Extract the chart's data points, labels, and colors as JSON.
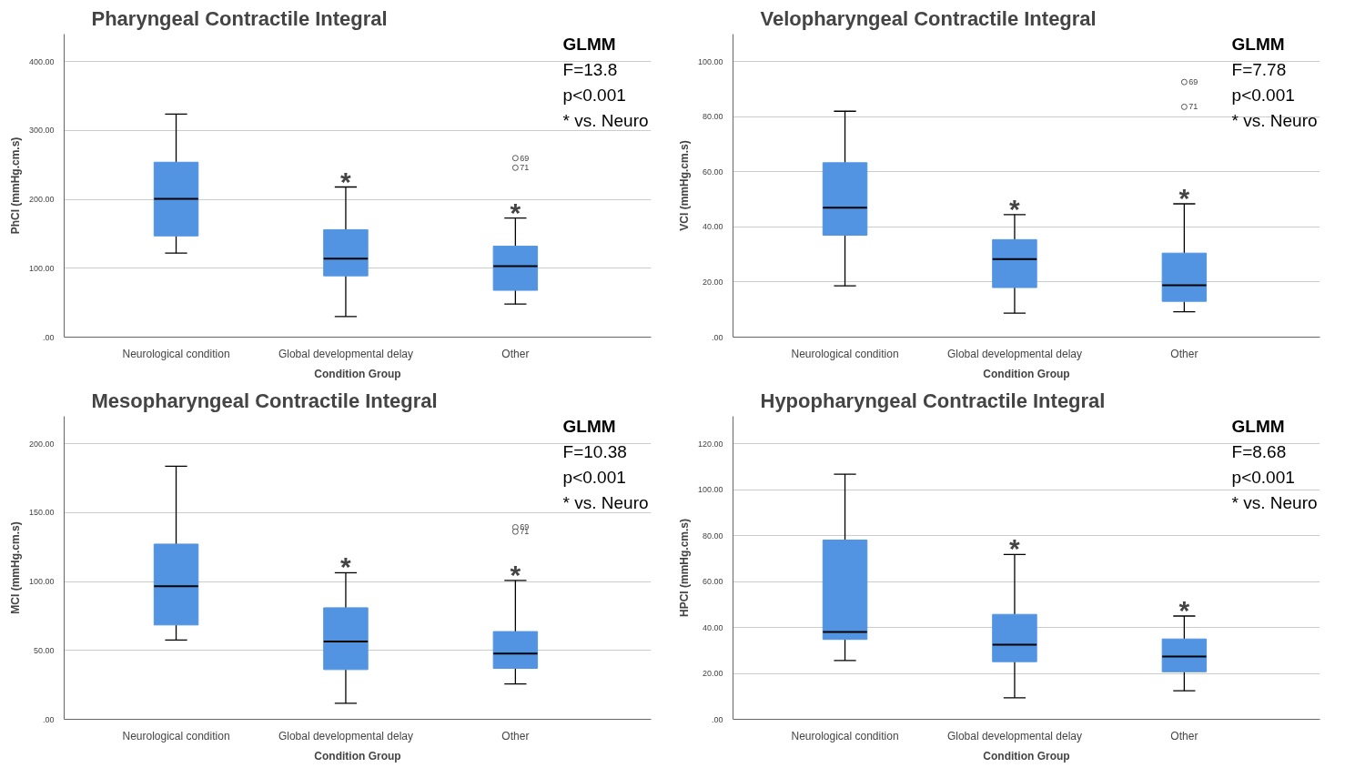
{
  "chart_data": [
    {
      "type": "box",
      "title": "Pharyngeal Contractile Integral",
      "xlabel": "Condition Group",
      "ylabel": "PhCI (mmHg.cm.s)",
      "categories": [
        "Neurological condition",
        "Global developmental delay",
        "Other"
      ],
      "ylim": [
        0,
        440
      ],
      "yticks": [
        {
          "value": 0,
          "label": ".00"
        },
        {
          "value": 100,
          "label": "100.00"
        },
        {
          "value": 200,
          "label": "200.00"
        },
        {
          "value": 300,
          "label": "300.00"
        },
        {
          "value": 400,
          "label": "400.00"
        }
      ],
      "grid": "y",
      "series": [
        {
          "color": "#5294e2",
          "boxes": [
            {
              "low": 122,
              "q1": 147,
              "median": 201,
              "q3": 254,
              "high": 324
            },
            {
              "low": 30,
              "q1": 89,
              "median": 114,
              "q3": 156,
              "high": 218
            },
            {
              "low": 48,
              "q1": 68,
              "median": 103,
              "q3": 132,
              "high": 173,
              "outliers": [
                260,
                246
              ]
            }
          ]
        }
      ],
      "annotations": [
        "GLMM",
        "F=13.8",
        "p<0.001",
        "* vs. Neuro",
        "*",
        "*",
        "69",
        "71"
      ]
    },
    {
      "type": "box",
      "title": "Velopharyngeal Contractile Integral",
      "xlabel": "Condition Group",
      "ylabel": "VCI (mmHg.cm.s)",
      "categories": [
        "Neurological condition",
        "Global developmental delay",
        "Other"
      ],
      "ylim": [
        0,
        110
      ],
      "yticks": [
        {
          "value": 0,
          "label": ".00"
        },
        {
          "value": 20,
          "label": "20.00"
        },
        {
          "value": 40,
          "label": "40.00"
        },
        {
          "value": 60,
          "label": "60.00"
        },
        {
          "value": 80,
          "label": "80.00"
        },
        {
          "value": 100,
          "label": "100.00"
        }
      ],
      "grid": "y",
      "series": [
        {
          "color": "#5294e2",
          "boxes": [
            {
              "low": 18.6,
              "q1": 37,
              "median": 47,
              "q3": 63.3,
              "high": 82
            },
            {
              "low": 8.7,
              "q1": 18,
              "median": 28.3,
              "q3": 35.4,
              "high": 44.5
            },
            {
              "low": 9.2,
              "q1": 13,
              "median": 18.8,
              "q3": 30.5,
              "high": 48.4,
              "outliers": [
                92.6,
                83.6
              ]
            }
          ]
        }
      ],
      "annotations": [
        "GLMM",
        "F=7.78",
        "p<0.001",
        "* vs. Neuro",
        "*",
        "*",
        "69",
        "71"
      ]
    },
    {
      "type": "box",
      "title": "Mesopharyngeal Contractile Integral",
      "xlabel": "Condition Group",
      "ylabel": "MCI (mmHg.cm.s)",
      "categories": [
        "Neurological condition",
        "Global developmental delay",
        "Other"
      ],
      "ylim": [
        0,
        220
      ],
      "yticks": [
        {
          "value": 0,
          "label": ".00"
        },
        {
          "value": 50,
          "label": "50.00"
        },
        {
          "value": 100,
          "label": "100.00"
        },
        {
          "value": 150,
          "label": "150.00"
        },
        {
          "value": 200,
          "label": "200.00"
        }
      ],
      "grid": "y",
      "series": [
        {
          "color": "#5294e2",
          "boxes": [
            {
              "low": 57.5,
              "q1": 68.5,
              "median": 96.7,
              "q3": 127.2,
              "high": 183.7
            },
            {
              "low": 11.6,
              "q1": 36.1,
              "median": 56.5,
              "q3": 81,
              "high": 106.4
            },
            {
              "low": 25.7,
              "q1": 37,
              "median": 47.7,
              "q3": 63.7,
              "high": 100.8,
              "outliers": [
                139.4,
                136.3
              ]
            }
          ]
        }
      ],
      "annotations": [
        "GLMM",
        "F=10.38",
        "p<0.001",
        "* vs. Neuro",
        "*",
        "*",
        "69",
        "71"
      ]
    },
    {
      "type": "box",
      "title": "Hypopharyngeal Contractile Integral",
      "xlabel": "Condition Group",
      "ylabel": "HPCI (mmHg.cm.s)",
      "categories": [
        "Neurological condition",
        "Global developmental delay",
        "Other"
      ],
      "ylim": [
        0,
        132
      ],
      "yticks": [
        {
          "value": 0,
          "label": ".00"
        },
        {
          "value": 20,
          "label": "20.00"
        },
        {
          "value": 40,
          "label": "40.00"
        },
        {
          "value": 60,
          "label": "60.00"
        },
        {
          "value": 80,
          "label": "80.00"
        },
        {
          "value": 100,
          "label": "100.00"
        },
        {
          "value": 120,
          "label": "120.00"
        }
      ],
      "grid": "y",
      "series": [
        {
          "color": "#5294e2",
          "boxes": [
            {
              "low": 25.6,
              "q1": 34.8,
              "median": 38.1,
              "q3": 78.1,
              "high": 106.8
            },
            {
              "low": 9.4,
              "q1": 25.1,
              "median": 32.5,
              "q3": 45.7,
              "high": 71.8
            },
            {
              "low": 12.4,
              "q1": 20.7,
              "median": 27.4,
              "q3": 35,
              "high": 45
            }
          ]
        }
      ],
      "annotations": [
        "GLMM",
        "F=8.68",
        "p<0.001",
        "* vs. Neuro",
        "*",
        "*"
      ]
    }
  ]
}
